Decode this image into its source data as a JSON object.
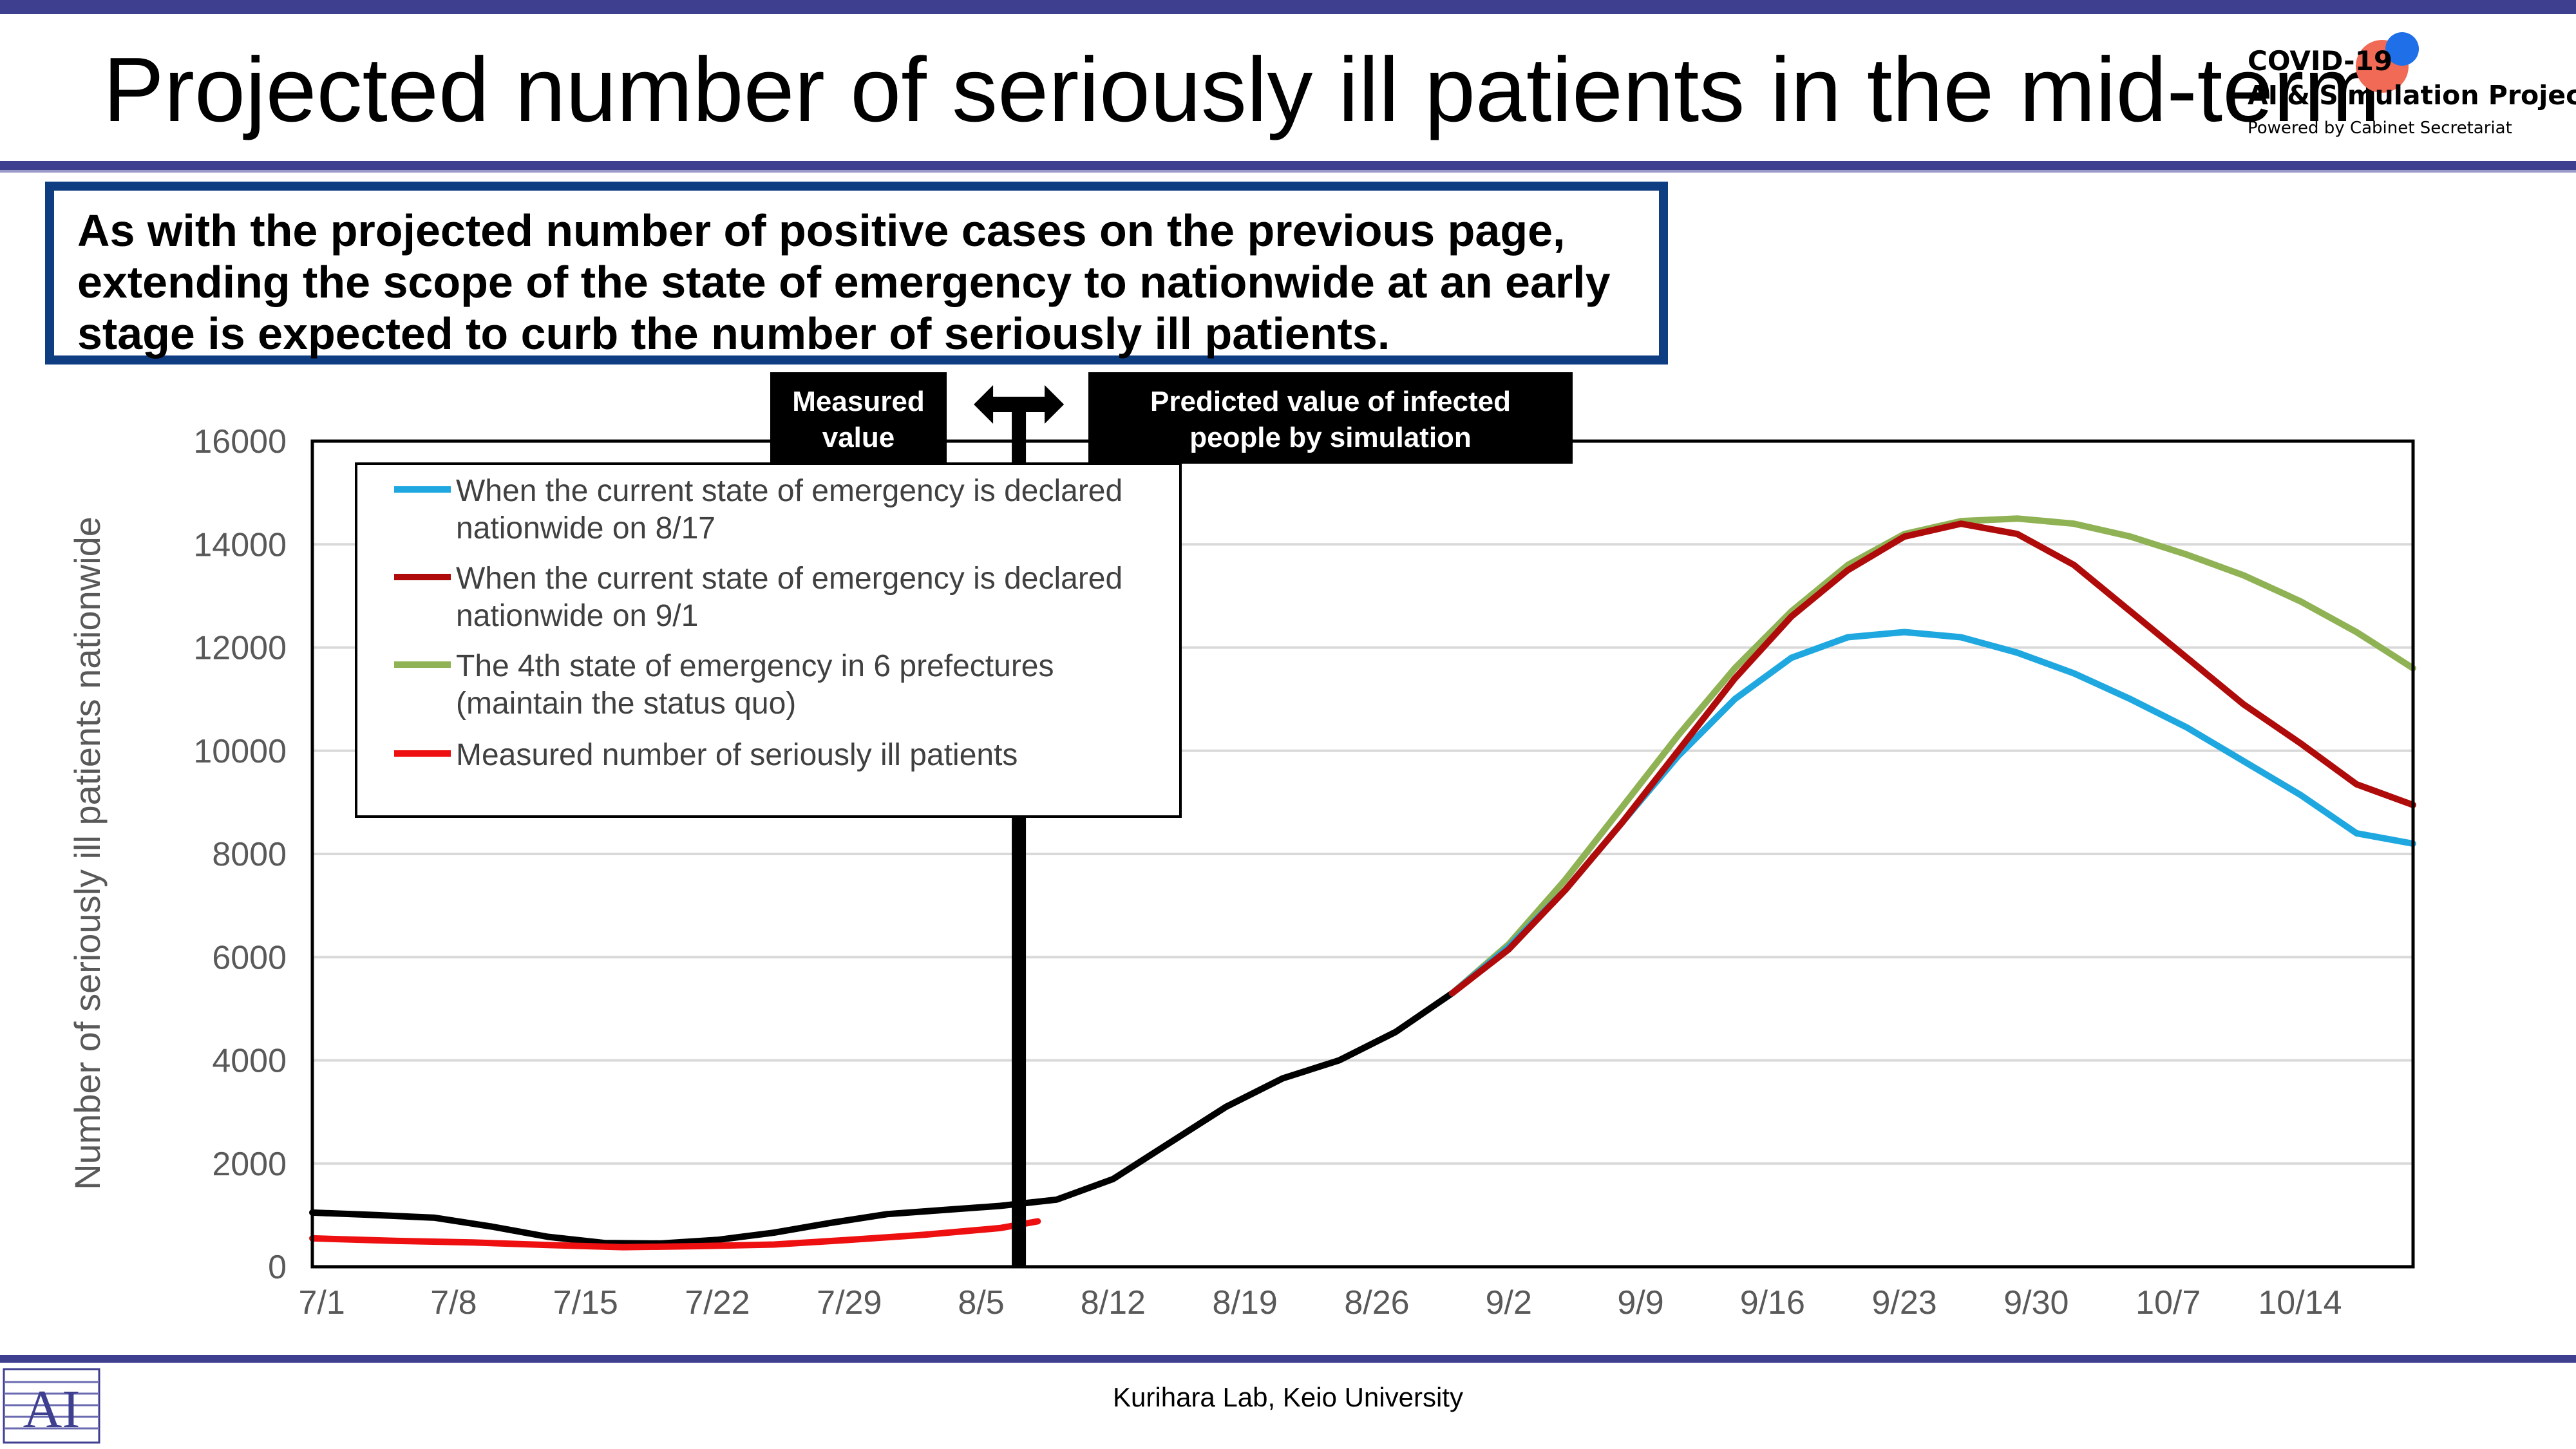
{
  "header": {
    "title": "Projected number of seriously ill patients in the mid-term",
    "logo": {
      "line1": "COVID-19",
      "line2": "AI & Simulation Project",
      "line3": "Powered by Cabinet Secretariat"
    }
  },
  "callout": {
    "text": "As with the projected number of positive cases on the previous page, extending the scope of the state of emergency to nationwide at an early stage is expected to curb the number of seriously ill patients."
  },
  "labels": {
    "measured": [
      "Measured",
      "value"
    ],
    "predicted": [
      "Predicted value of infected",
      "people by simulation"
    ]
  },
  "footer": {
    "text": "Kurihara Lab, Keio University"
  },
  "colors": {
    "header_bar": "#3f3f8f",
    "callout_border": "#0e3d82",
    "blue": "#1fa8e0",
    "darkred": "#b00b0b",
    "green": "#8fb254",
    "red": "#ee1010",
    "black": "#000000",
    "grid": "#d9d9d9",
    "axis_text": "#595959"
  },
  "chart_data": {
    "type": "line",
    "title": "",
    "xlabel": "",
    "ylabel": "Number of seriously ill patients nationwide",
    "ylim": [
      0,
      16000
    ],
    "yticks": [
      0,
      2000,
      4000,
      6000,
      8000,
      10000,
      12000,
      14000,
      16000
    ],
    "x_labels": [
      "7/1",
      "7/8",
      "7/15",
      "7/22",
      "7/29",
      "8/5",
      "8/12",
      "8/19",
      "8/26",
      "9/2",
      "9/9",
      "9/16",
      "9/23",
      "9/30",
      "10/7",
      "10/14"
    ],
    "x_label_days": [
      0,
      7,
      14,
      21,
      28,
      35,
      42,
      49,
      56,
      63,
      70,
      77,
      84,
      91,
      98,
      105
    ],
    "xlim_days": [
      -0.5,
      111
    ],
    "grid": true,
    "legend_position": "top-left",
    "divider_day": 37,
    "series": [
      {
        "name": "When the current state of emergency is declared nationwide on 8/17",
        "line1": "When the current state of emergency is declared",
        "line2": "nationwide on 8/17",
        "color_key": "blue",
        "x": [
          60,
          63,
          66,
          69,
          72,
          75,
          78,
          81,
          84,
          87,
          90,
          93,
          96,
          99,
          102,
          105,
          108,
          111
        ],
        "y": [
          5300,
          6200,
          7300,
          8600,
          9900,
          11000,
          11800,
          12200,
          12300,
          12200,
          11900,
          11500,
          11000,
          10450,
          9800,
          9150,
          8400,
          8200
        ]
      },
      {
        "name": "When the current state of emergency is declared nationwide on 9/1",
        "line1": "When the current state of emergency is declared",
        "line2": "nationwide on 9/1",
        "color_key": "darkred",
        "x": [
          60,
          63,
          66,
          69,
          72,
          75,
          78,
          81,
          84,
          87,
          90,
          93,
          96,
          99,
          102,
          105,
          108,
          111
        ],
        "y": [
          5300,
          6150,
          7300,
          8600,
          10000,
          11400,
          12600,
          13500,
          14150,
          14400,
          14200,
          13600,
          12700,
          11800,
          10900,
          10150,
          9350,
          8950
        ]
      },
      {
        "name": "The 4th state of emergency in 6 prefectures (maintain the status quo)",
        "line1": "The 4th state of emergency in 6 prefectures",
        "line2": "(maintain the status quo)",
        "color_key": "green",
        "x": [
          60,
          63,
          66,
          69,
          72,
          75,
          78,
          81,
          84,
          87,
          90,
          93,
          96,
          99,
          102,
          105,
          108,
          111
        ],
        "y": [
          5300,
          6250,
          7500,
          8900,
          10300,
          11600,
          12700,
          13600,
          14200,
          14450,
          14500,
          14400,
          14150,
          13800,
          13400,
          12900,
          12300,
          11600
        ]
      },
      {
        "name": "Measured number of seriously ill patients",
        "line1": "Measured number of seriously ill patients",
        "line2": "",
        "color_key": "red",
        "x": [
          -0.5,
          4,
          8,
          12,
          16,
          20,
          24,
          28,
          32,
          36,
          38
        ],
        "y": [
          550,
          500,
          470,
          420,
          380,
          400,
          430,
          520,
          620,
          750,
          880
        ]
      },
      {
        "name": "",
        "legend": false,
        "color_key": "black",
        "x": [
          -0.5,
          3,
          6,
          9,
          12,
          15,
          18,
          21,
          24,
          27,
          30,
          33,
          36,
          39,
          42,
          45,
          48,
          51,
          54,
          57,
          60
        ],
        "y": [
          1050,
          1000,
          950,
          780,
          580,
          460,
          450,
          520,
          660,
          850,
          1020,
          1100,
          1180,
          1300,
          1700,
          2400,
          3100,
          3650,
          4000,
          4550,
          5300
        ]
      }
    ]
  }
}
